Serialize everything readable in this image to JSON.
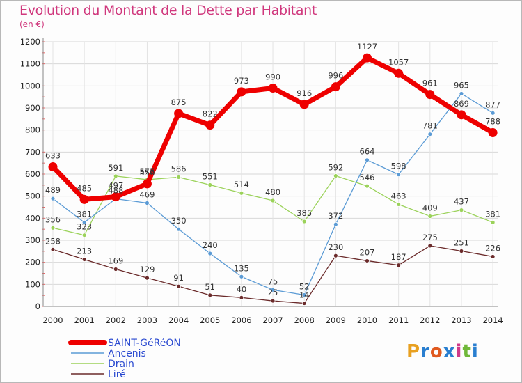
{
  "title": "Evolution du Montant de la Dette par Habitant",
  "unit": "(en €)",
  "chart_data": {
    "type": "line",
    "title": "Evolution du Montant de la Dette par Habitant",
    "subtitle": "(en €)",
    "ylim": [
      0,
      1200
    ],
    "yticks": [
      0,
      100,
      200,
      300,
      400,
      500,
      600,
      700,
      800,
      900,
      1000,
      1100,
      1200
    ],
    "categories": [
      "2000",
      "2001",
      "2002",
      "2003",
      "2004",
      "2005",
      "2006",
      "2007",
      "2008",
      "2009",
      "2010",
      "2011",
      "2012",
      "2013",
      "2014"
    ],
    "grid": true,
    "legend_position": "bottom-left",
    "series": [
      {
        "name": "SAINT-GéRéON",
        "color": "#ee0000",
        "values": [
          633,
          485,
          497,
          556,
          875,
          822,
          973,
          990,
          916,
          996,
          1127,
          1057,
          961,
          869,
          788
        ]
      },
      {
        "name": "Ancenis",
        "color": "#5b9bd5",
        "values": [
          489,
          381,
          488,
          469,
          350,
          240,
          135,
          75,
          52,
          372,
          664,
          598,
          781,
          965,
          877
        ]
      },
      {
        "name": "Drain",
        "color": "#9bd25a",
        "values": [
          356,
          323,
          591,
          575,
          586,
          551,
          514,
          480,
          385,
          592,
          546,
          463,
          409,
          437,
          381
        ]
      },
      {
        "name": "Liré",
        "color": "#6b2b2b",
        "values": [
          258,
          213,
          169,
          129,
          91,
          51,
          40,
          25,
          14,
          230,
          207,
          187,
          275,
          251,
          226
        ]
      }
    ],
    "labels": [
      {
        "series": 0,
        "text": [
          "633",
          "485",
          "497",
          "556",
          "875",
          "822",
          "973",
          "990",
          "916",
          "996",
          "1127",
          "1057",
          "961",
          "869",
          "788"
        ]
      },
      {
        "series": 1,
        "text": [
          "489",
          "381",
          "488",
          "469",
          "350",
          "240",
          "135",
          "75",
          "52",
          "372",
          "664",
          "598",
          "781",
          "965",
          "877"
        ]
      },
      {
        "series": 2,
        "text": [
          "356",
          "323",
          "591",
          "575",
          "586",
          "551",
          "514",
          "480",
          "385",
          "592",
          "546",
          "463",
          "409",
          "437",
          "381"
        ]
      },
      {
        "series": 3,
        "text": [
          "258",
          "213",
          "169",
          "129",
          "91",
          "51",
          "40",
          "25",
          "14",
          "230",
          "207",
          "187",
          "275",
          "251",
          "226"
        ]
      }
    ]
  },
  "logo": {
    "text": "Proxiti",
    "colors": [
      "#e8a020",
      "#2a7fd0",
      "#e05a20",
      "#2a7fd0",
      "#d03a8a",
      "#70b83a",
      "#2a7fd0"
    ]
  }
}
